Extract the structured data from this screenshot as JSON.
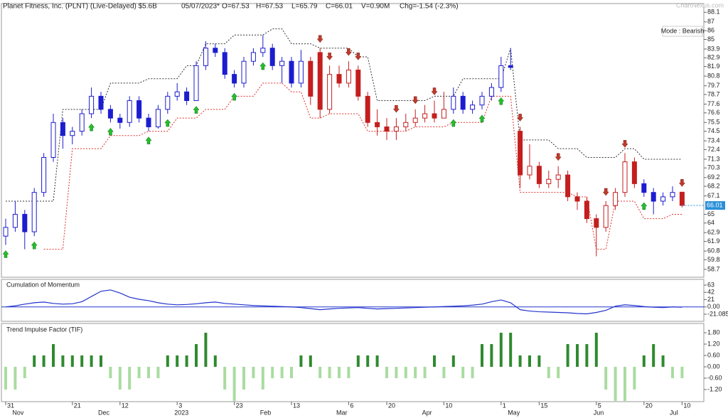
{
  "chart_data": [
    {
      "type": "candlestick",
      "title": "Planet Fitness, Inc. (PLNT) (Live-Delayed) $5.6B",
      "date": "05/07/2023*",
      "stats": [
        "O=67.53",
        "H=67.53",
        "L=65.79",
        "C=66.01",
        "V=0.90M",
        "Chg=-1.54 (-2.3%)"
      ],
      "watermark": "ChartNexus.com",
      "mode": "Mode : Bearish",
      "last_price": 66.01,
      "categories": [
        "31",
        null,
        null,
        null,
        null,
        null,
        null,
        "21",
        null,
        null,
        null,
        null,
        "12",
        null,
        null,
        null,
        null,
        null,
        "3",
        null,
        null,
        null,
        null,
        null,
        "23",
        null,
        null,
        null,
        null,
        null,
        "13",
        null,
        null,
        null,
        null,
        null,
        "6",
        null,
        null,
        null,
        "20",
        null,
        null,
        null,
        null,
        null,
        "10",
        null,
        null,
        null,
        null,
        null,
        "1",
        null,
        null,
        null,
        "15",
        null,
        null,
        null,
        null,
        null,
        "5",
        null,
        null,
        null,
        null,
        "20",
        null,
        null,
        null,
        "10"
      ],
      "months": [
        null,
        "Nov",
        null,
        null,
        null,
        null,
        null,
        null,
        null,
        null,
        "Dec",
        null,
        null,
        null,
        null,
        null,
        null,
        null,
        "2023",
        null,
        null,
        null,
        null,
        null,
        null,
        null,
        null,
        "Feb",
        null,
        null,
        null,
        null,
        null,
        null,
        null,
        "Mar",
        null,
        null,
        null,
        null,
        null,
        null,
        null,
        null,
        "Apr",
        null,
        null,
        null,
        null,
        null,
        null,
        null,
        null,
        "May",
        null,
        null,
        null,
        null,
        null,
        null,
        null,
        null,
        "Jun",
        null,
        null,
        null,
        null,
        null,
        null,
        null,
        "Jul",
        null
      ],
      "open": [
        62.5,
        63.5,
        65,
        63,
        67.5,
        71.5,
        75.5,
        74,
        74.5,
        76.5,
        78.5,
        77,
        76,
        75.5,
        78,
        76,
        75,
        77,
        78.5,
        79,
        78,
        82,
        84,
        83.5,
        81,
        80,
        82.5,
        83.5,
        84,
        82,
        82.5,
        80,
        82.5,
        83.5,
        77,
        81,
        80,
        81.5,
        78.5,
        75.5,
        75,
        74.5,
        75,
        75.5,
        76,
        76.5,
        76,
        77,
        78.5,
        77,
        77.5,
        78.5,
        79.5,
        82,
        74.5,
        69.5,
        70.5,
        68.5,
        69,
        69.5,
        67,
        66.5,
        64.5,
        63.5,
        66,
        67.5,
        71,
        68.5,
        67.5,
        66.5,
        67,
        67.53
      ],
      "high": [
        64.5,
        66.5,
        65.5,
        68,
        72,
        76.5,
        76,
        75,
        77,
        79.5,
        79,
        77.5,
        76.5,
        78.5,
        78.5,
        76.5,
        77.5,
        79,
        80,
        79.5,
        82.5,
        84.8,
        84.5,
        84,
        81.5,
        83,
        84,
        85.5,
        84.5,
        83,
        83,
        83.8,
        83,
        84,
        82,
        82,
        82.5,
        82,
        79,
        77,
        76,
        76,
        76.5,
        77,
        77.5,
        78,
        79,
        79.5,
        79,
        78,
        79,
        80,
        83,
        84,
        75,
        73,
        71,
        70,
        70.5,
        70,
        67.5,
        67,
        65,
        66.5,
        68,
        72,
        71.5,
        69,
        68,
        67.5,
        68.2,
        67.53
      ],
      "low": [
        61.5,
        63,
        61,
        62.5,
        67,
        71,
        72.5,
        73,
        74,
        76,
        76.5,
        75.5,
        74.8,
        75,
        75.5,
        74.5,
        74.8,
        76.5,
        78,
        77.5,
        78,
        81.5,
        83,
        80.5,
        79.5,
        79.5,
        82,
        83,
        81.5,
        80,
        79.5,
        79.5,
        77.5,
        76,
        76.5,
        79.5,
        79.5,
        78,
        75,
        74,
        73.5,
        73.5,
        74.5,
        75,
        75.5,
        75.5,
        76,
        76.5,
        76.5,
        76.5,
        77,
        78,
        79,
        81.5,
        68,
        69,
        68,
        68,
        68,
        66.5,
        65.5,
        64,
        60.2,
        63,
        65.5,
        67,
        68,
        67,
        65,
        66,
        66.5,
        65.79
      ],
      "close": [
        63.5,
        65,
        63,
        67.5,
        71.5,
        75.5,
        74,
        74.5,
        76.5,
        78.5,
        77,
        76,
        75.5,
        78,
        76,
        75,
        77,
        78.5,
        79,
        78,
        82,
        84,
        83.5,
        81,
        80,
        82.5,
        83.5,
        84,
        82,
        82.5,
        80,
        82.5,
        78.5,
        77,
        81,
        80,
        81.5,
        78.5,
        75.5,
        75,
        74.5,
        75,
        75.5,
        76,
        76.5,
        76,
        77,
        78.5,
        77,
        77.5,
        78.5,
        79.5,
        82,
        81.8,
        69.5,
        70.5,
        68.5,
        69,
        69.5,
        67,
        66.5,
        64.5,
        63.5,
        66,
        67.5,
        71,
        68.5,
        67.5,
        66.5,
        67,
        67.5,
        66.01
      ],
      "colors": [
        "#1c1cd0",
        "#1c1cd0",
        "#1c1cd0",
        "#1c1cd0",
        "#1c1cd0",
        "#1c1cd0",
        "#1c1cd0",
        "#1c1cd0",
        "#1c1cd0",
        "#1c1cd0",
        "#1c1cd0",
        "#1c1cd0",
        "#1c1cd0",
        "#1c1cd0",
        "#1c1cd0",
        "#1c1cd0",
        "#1c1cd0",
        "#1c1cd0",
        "#1c1cd0",
        "#1c1cd0",
        "#1c1cd0",
        "#1c1cd0",
        "#1c1cd0",
        "#1c1cd0",
        "#1c1cd0",
        "#1c1cd0",
        "#1c1cd0",
        "#1c1cd0",
        "#1c1cd0",
        "#1c1cd0",
        "#1c1cd0",
        "#1c1cd0",
        "#c41e1e",
        "#c41e1e",
        "#c41e1e",
        "#c41e1e",
        "#c41e1e",
        "#c41e1e",
        "#c41e1e",
        "#c41e1e",
        "#c41e1e",
        "#c41e1e",
        "#c41e1e",
        "#c41e1e",
        "#c41e1e",
        "#c41e1e",
        "#c41e1e",
        "#1c1cd0",
        "#1c1cd0",
        "#1c1cd0",
        "#1c1cd0",
        "#1c1cd0",
        "#1c1cd0",
        "#1c1cd0",
        "#c41e1e",
        "#c41e1e",
        "#c41e1e",
        "#c41e1e",
        "#c41e1e",
        "#c41e1e",
        "#c41e1e",
        "#c41e1e",
        "#c41e1e",
        "#c41e1e",
        "#c41e1e",
        "#c41e1e",
        "#c41e1e",
        "#1c1cd0",
        "#1c1cd0",
        "#1c1cd0",
        "#1c1cd0",
        "#c41e1e"
      ],
      "series": [
        {
          "name": "upper stop",
          "color": "#333333",
          "values": [
            66.5,
            66.5,
            66.5,
            66.5,
            66.5,
            66.5,
            77,
            77,
            77,
            77,
            77,
            80,
            80,
            80,
            80,
            80.5,
            80.5,
            80.5,
            80.5,
            82,
            82,
            84.5,
            84.5,
            84.5,
            85.5,
            85.5,
            85.5,
            85.5,
            86.2,
            86.2,
            84.5,
            84.5,
            84.5,
            84,
            84,
            84,
            84,
            83,
            83,
            78,
            78,
            78,
            78,
            78,
            78,
            78.5,
            78.5,
            78.5,
            80.5,
            80.5,
            80.5,
            80.5,
            80.5,
            84,
            73.5,
            73.5,
            73.5,
            73.5,
            72.5,
            72.5,
            72.5,
            71.5,
            71.5,
            71.5,
            71.5,
            72.5,
            72.5,
            71.3,
            71.3,
            71.3,
            71.3,
            71.3
          ]
        },
        {
          "name": "lower stop",
          "color": "#e0312b",
          "values": [
            null,
            null,
            null,
            null,
            61,
            61,
            61,
            72.5,
            72.5,
            72.5,
            72.5,
            74,
            74,
            74,
            74,
            74.5,
            74.5,
            74.5,
            76,
            76,
            76,
            77,
            77,
            77,
            78.5,
            78.5,
            78.5,
            80,
            80,
            80,
            79,
            79,
            76,
            76,
            76.5,
            76.5,
            76.5,
            76.5,
            74.5,
            74.5,
            74.5,
            74.5,
            74.5,
            75,
            75,
            75,
            75,
            75.5,
            75.5,
            75.5,
            75.5,
            78.5,
            78.5,
            78.5,
            67.5,
            67.5,
            67.5,
            67.5,
            67.5,
            67.5,
            67,
            67,
            61,
            61,
            66.5,
            66.5,
            66.5,
            64.5,
            64.5,
            64.5,
            65,
            65
          ]
        }
      ],
      "signals": [
        "up",
        null,
        null,
        "up",
        null,
        null,
        null,
        null,
        null,
        "up",
        null,
        "up",
        null,
        null,
        null,
        "up",
        null,
        "up",
        null,
        null,
        "up",
        null,
        null,
        null,
        "up",
        null,
        null,
        "up",
        null,
        null,
        null,
        null,
        null,
        "down",
        "down",
        null,
        "down",
        "down",
        null,
        null,
        null,
        "down",
        null,
        "down",
        null,
        "down",
        null,
        "up",
        null,
        null,
        "up",
        null,
        "up",
        null,
        "down",
        null,
        null,
        null,
        "down",
        null,
        null,
        null,
        null,
        "down",
        null,
        "down",
        null,
        "up",
        null,
        null,
        null,
        "down"
      ],
      "up_color": "#22c02a",
      "down_color": "#c03a2a",
      "ylim": [
        57.8,
        89.1
      ],
      "yticks": [
        88.1,
        87,
        86,
        85,
        83.9,
        82.9,
        81.9,
        80.8,
        79.7,
        78.7,
        77.6,
        76.6,
        75.5,
        74.5,
        73.4,
        72.4,
        71.3,
        70.3,
        69.2,
        68.2,
        67.1,
        65,
        64,
        62.9,
        61.9,
        60.8,
        59.8,
        58.7
      ]
    },
    {
      "type": "line",
      "title": "Cumulation of Momentum",
      "color": "#2233cc",
      "values": [
        0,
        3,
        8,
        12,
        14,
        10,
        8,
        9,
        15,
        30,
        45,
        49,
        40,
        28,
        22,
        18,
        12,
        8,
        6,
        7,
        9,
        12,
        14,
        10,
        8,
        6,
        4,
        3,
        2,
        1,
        0,
        -2,
        -5,
        -8,
        -6,
        -4,
        -3,
        -2,
        -4,
        -6,
        -5,
        -4,
        -3,
        -2,
        -1,
        0,
        1,
        2,
        3,
        5,
        8,
        15,
        20,
        12,
        -8,
        -12,
        -14,
        -15,
        -16,
        -17,
        -19,
        -20,
        -16,
        -10,
        2,
        6,
        4,
        1,
        -1,
        -2,
        0,
        -1
      ],
      "ylim": [
        -41.6,
        79.4
      ],
      "yticks": [
        63,
        42,
        21,
        {
          "value": 0,
          "label": "0.00"
        },
        -21.085
      ]
    },
    {
      "type": "bar",
      "title": "Trend Impulse Factor (TIF)",
      "color": "#2f8a2f",
      "negative_color": "#a9dca0",
      "values": [
        -1.2,
        -1.2,
        -0.6,
        0.6,
        0.6,
        1.2,
        0.6,
        0.6,
        0.6,
        0.6,
        0.6,
        -0.6,
        -1.2,
        -1.2,
        -0.6,
        -0.6,
        -0.6,
        0.6,
        0.6,
        0.6,
        1.2,
        1.8,
        0.6,
        -1.2,
        -1.8,
        -1.2,
        -0.6,
        -1.2,
        -0.6,
        -0.6,
        -0.6,
        0.6,
        0.6,
        -0.6,
        -0.6,
        -0.6,
        -0.6,
        0.6,
        0.6,
        0.6,
        -0.6,
        -0.6,
        -0.6,
        -0.6,
        -0.6,
        0.6,
        -0.6,
        0.6,
        -0.6,
        -0.6,
        1.2,
        1.2,
        1.8,
        1.8,
        0.6,
        0.6,
        0.6,
        -0.6,
        -0.6,
        1.2,
        1.2,
        1.2,
        1.8,
        -1.2,
        -1.8,
        -1.8,
        -1.2,
        0.6,
        1.2,
        0.6,
        -0.6,
        -0.6
      ],
      "ylim": [
        -1.84,
        2.29
      ],
      "yticks": [
        {
          "value": 1.8,
          "label": "1.80"
        },
        {
          "value": 1.2,
          "label": "1.20"
        },
        {
          "value": 0.6,
          "label": "0.60"
        },
        {
          "value": 0,
          "label": "0.00"
        },
        {
          "value": -0.6,
          "label": "-0.60"
        },
        {
          "value": -1.2,
          "label": "-1.20"
        }
      ]
    }
  ]
}
